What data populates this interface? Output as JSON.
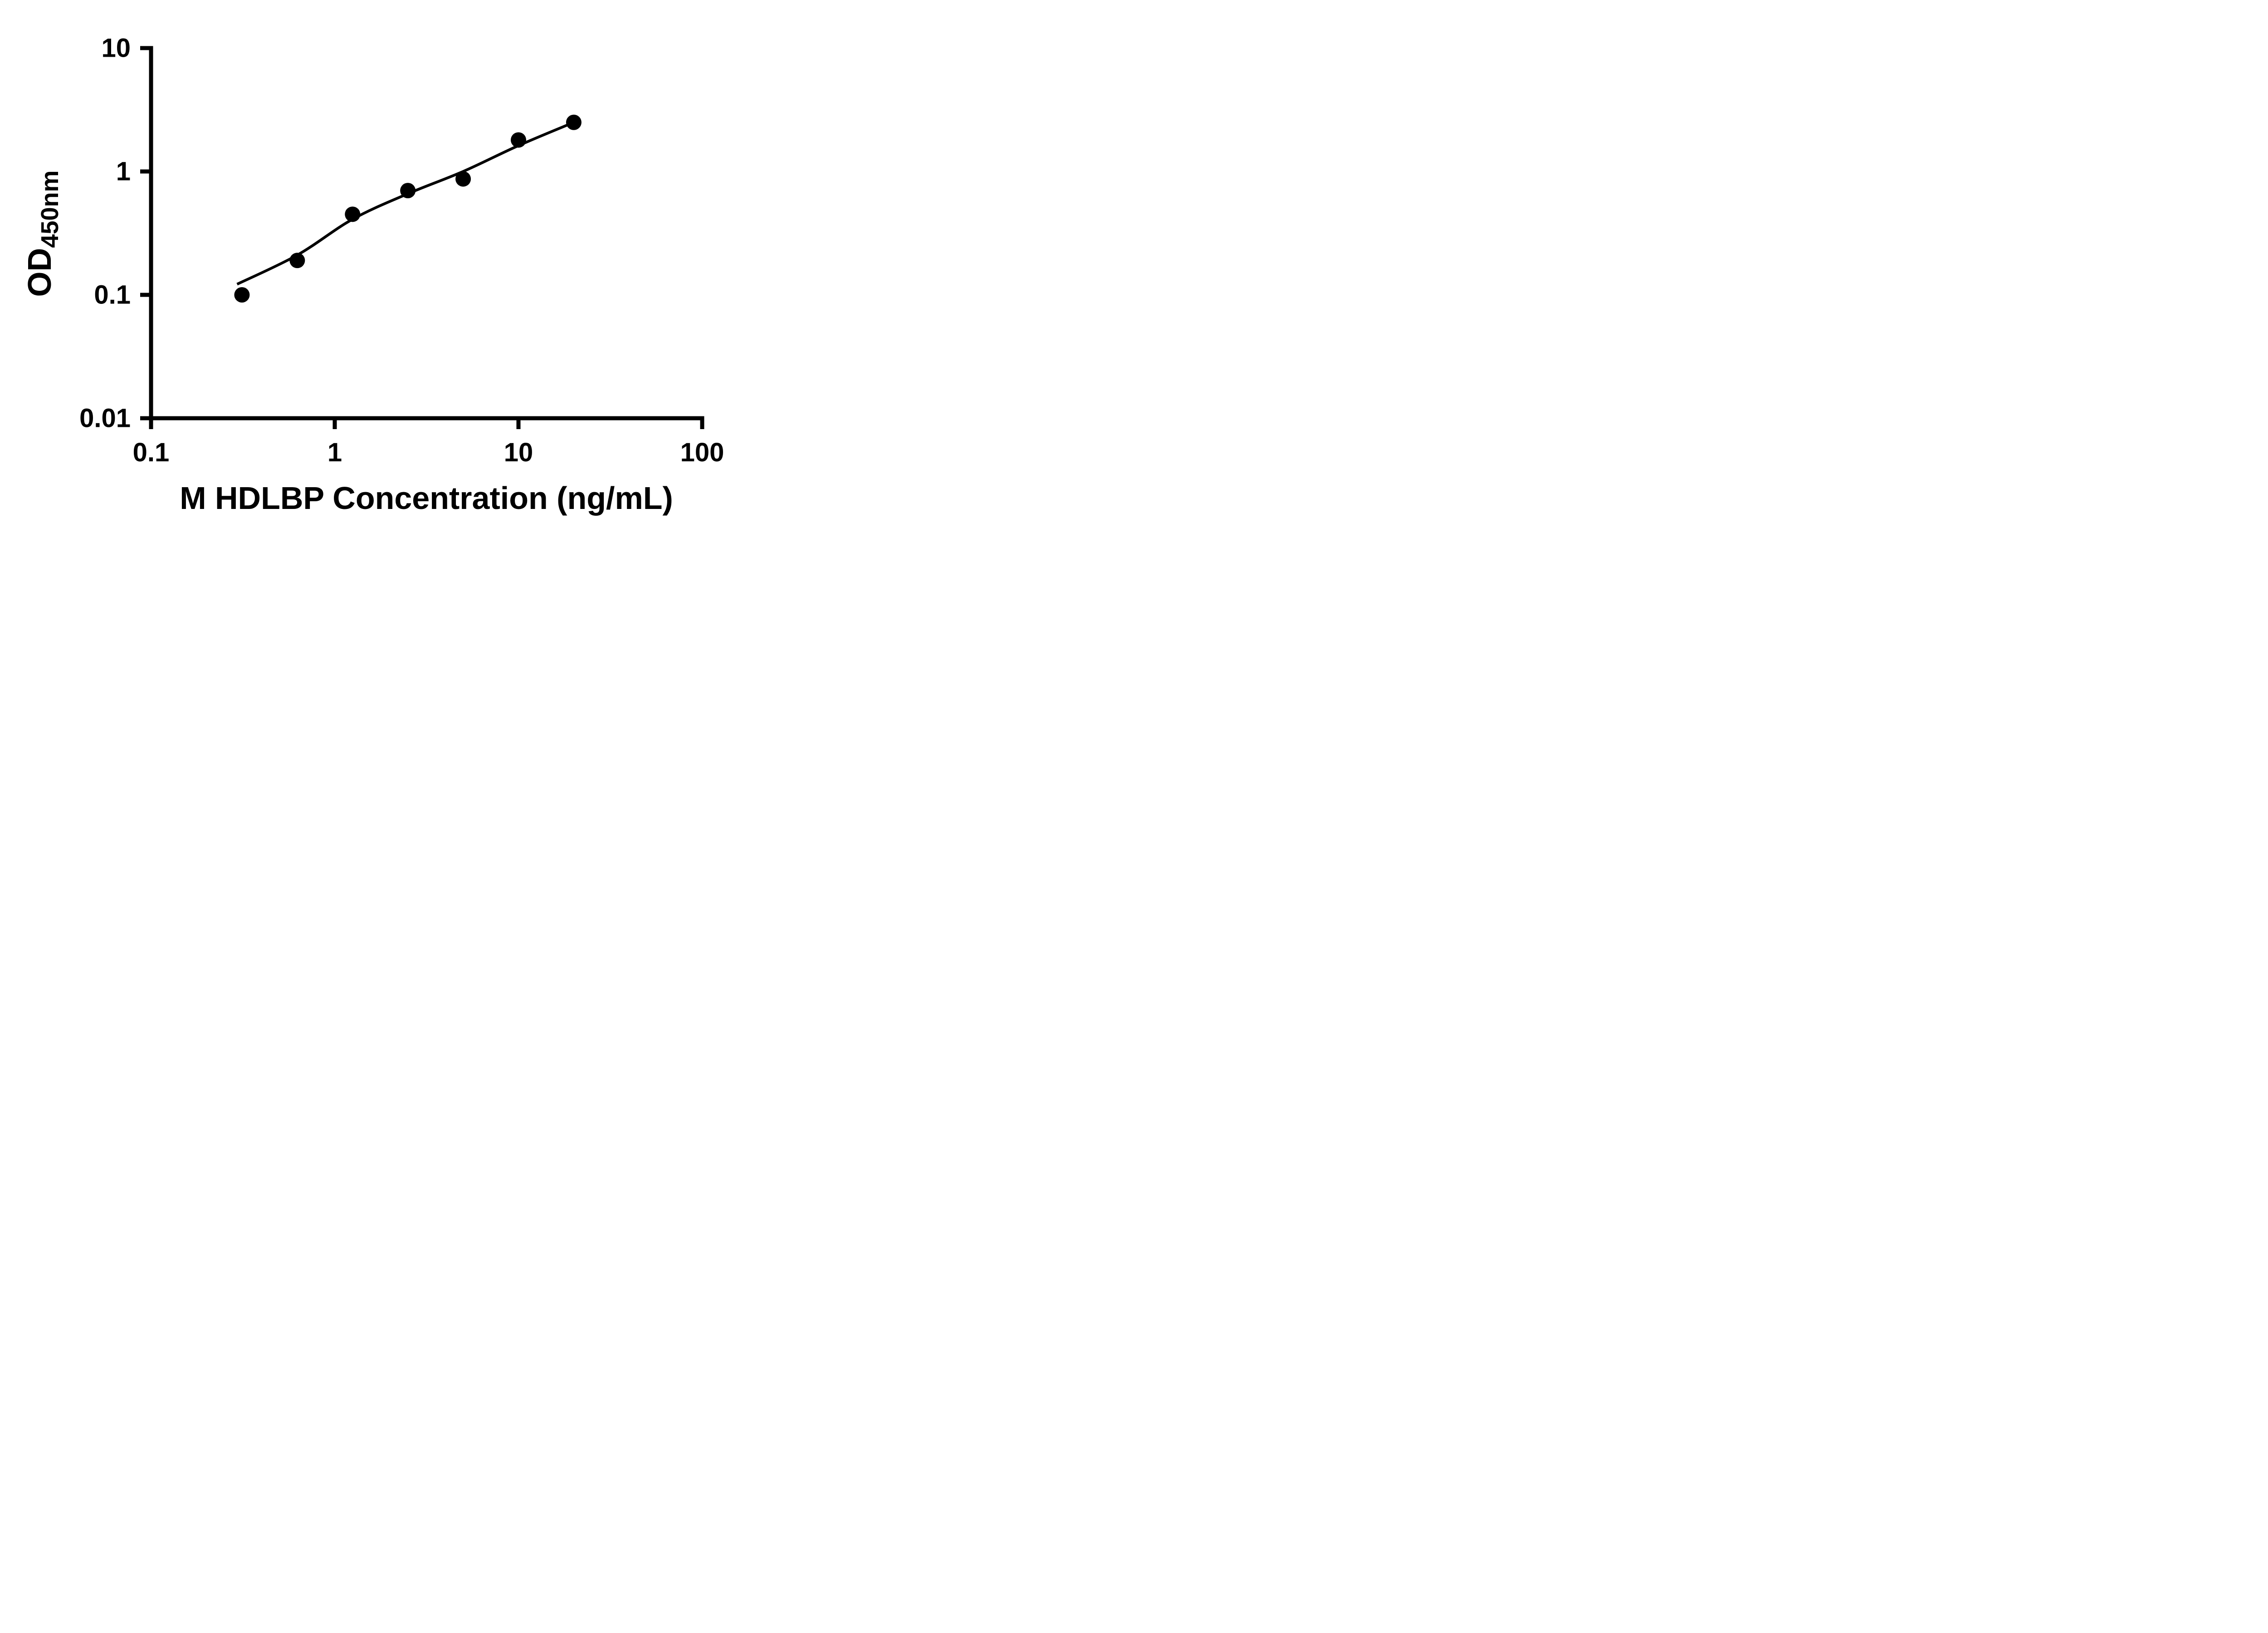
{
  "figure": {
    "background": "#ffffff",
    "foreground": "#000000"
  },
  "chart_data": {
    "type": "scatter",
    "title": "",
    "xlabel": "M HDLBP Concentration (ng/mL)",
    "ylabel_main": "OD",
    "ylabel_sub": "450nm",
    "x_scale": "log",
    "y_scale": "log",
    "xlim": [
      0.1,
      100
    ],
    "ylim": [
      0.01,
      10
    ],
    "grid": false,
    "legend": false,
    "x_ticks": [
      0.1,
      1,
      10,
      100
    ],
    "x_tick_labels": [
      "0.1",
      "1",
      "10",
      "100"
    ],
    "y_ticks": [
      0.01,
      0.1,
      1,
      10
    ],
    "y_tick_labels": [
      "0.01",
      "0.1",
      "1",
      "10"
    ],
    "series": [
      {
        "marker": "circle",
        "color": "#000000",
        "x": [
          0.3125,
          0.625,
          1.25,
          2.5,
          5,
          10,
          20
        ],
        "y": [
          0.1,
          0.19,
          0.45,
          0.7,
          0.87,
          1.8,
          2.5
        ]
      }
    ],
    "fit_curve": {
      "color": "#000000",
      "x": [
        0.294,
        0.625,
        1.25,
        2.5,
        5,
        10,
        20
      ],
      "y": [
        0.122,
        0.21,
        0.41,
        0.66,
        1.0,
        1.62,
        2.5
      ]
    }
  }
}
